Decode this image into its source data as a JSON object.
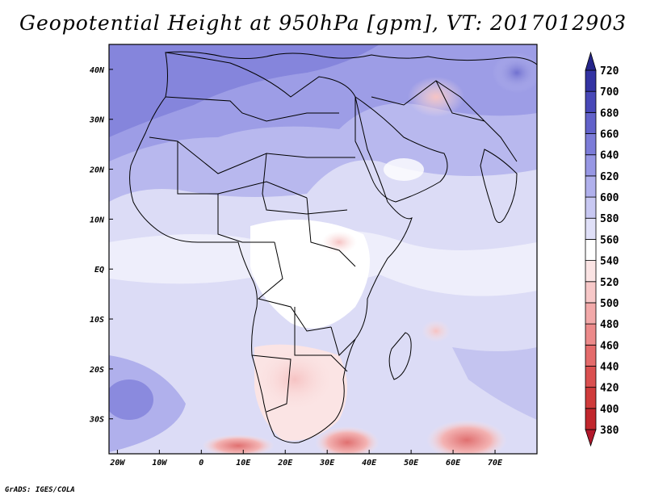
{
  "title": "Geopotential Height at 950hPa [gpm], VT: 2017012903",
  "credit": "GrADS: IGES/COLA",
  "map": {
    "lat_labels": [
      "40N",
      "30N",
      "20N",
      "10N",
      "EQ",
      "10S",
      "20S",
      "30S"
    ],
    "lat_values": [
      40,
      30,
      20,
      10,
      0,
      -10,
      -20,
      -30
    ],
    "lon_labels": [
      "20W",
      "10W",
      "0",
      "10E",
      "20E",
      "30E",
      "40E",
      "50E",
      "60E",
      "70E"
    ],
    "lon_values": [
      -20,
      -10,
      0,
      10,
      20,
      30,
      40,
      50,
      60,
      70
    ],
    "lon_range": [
      -22,
      80
    ],
    "lat_range": [
      -37,
      45
    ]
  },
  "colorbar": {
    "levels": [
      "380",
      "400",
      "420",
      "440",
      "460",
      "480",
      "500",
      "520",
      "540",
      "560",
      "580",
      "600",
      "620",
      "640",
      "660",
      "680",
      "700",
      "720"
    ],
    "colors": [
      "#b2182b",
      "#c1272d",
      "#cf3b3b",
      "#da5050",
      "#e46b6b",
      "#ec8a8a",
      "#f2a9a9",
      "#f7c8c8",
      "#fbe4e4",
      "#ffffff",
      "#e0e0f8",
      "#c8c8f2",
      "#b0b0ec",
      "#9797e4",
      "#7c7cd8",
      "#6262ca",
      "#4848b8",
      "#3333a3",
      "#25258a"
    ]
  }
}
